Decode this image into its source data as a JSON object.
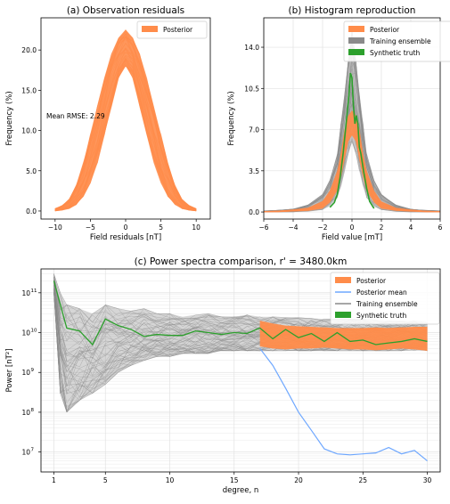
{
  "colors": {
    "posterior": "#ff8c4a",
    "training": "#8a8a8a",
    "synthetic": "#2ca02c",
    "posterior_mean": "#6fa8ff",
    "grid": "#e2e2e2"
  },
  "chart_data": [
    {
      "type": "area",
      "title": "(a) Observation residuals",
      "xlabel": "Field residuals [nT]",
      "ylabel": "Frequency (%)",
      "xlim": [
        -12,
        12
      ],
      "ylim": [
        -1,
        24
      ],
      "xticks": [
        -10,
        -5,
        0,
        5,
        10
      ],
      "xtick_labels": [
        "−10",
        "−5",
        "0",
        "5",
        "10"
      ],
      "yticks": [
        0,
        5,
        10,
        15,
        20
      ],
      "ytick_labels": [
        "0.0",
        "5.0",
        "10.0",
        "15.0",
        "20.0"
      ],
      "grid": false,
      "legend": "top-right",
      "annotation": "Mean RMSE: 2.29",
      "series": [
        {
          "name": "Posterior",
          "x": [
            -10,
            -9,
            -8,
            -7,
            -6,
            -5,
            -4,
            -3,
            -2,
            -1,
            0,
            1,
            2,
            3,
            4,
            5,
            6,
            7,
            8,
            9,
            10
          ],
          "upper": [
            0.3,
            0.7,
            1.5,
            3.2,
            6.0,
            9.5,
            13.0,
            16.5,
            19.5,
            21.5,
            22.5,
            21.5,
            19.5,
            16.5,
            13.0,
            9.5,
            6.0,
            3.2,
            1.5,
            0.7,
            0.3
          ],
          "lower": [
            0.0,
            0.1,
            0.3,
            0.8,
            1.8,
            3.5,
            6.0,
            9.5,
            13.0,
            16.5,
            18.0,
            16.5,
            13.0,
            9.5,
            6.0,
            3.5,
            1.8,
            0.8,
            0.3,
            0.1,
            0.0
          ]
        }
      ]
    },
    {
      "type": "area",
      "title": "(b) Histogram reproduction",
      "xlabel": "Field value [mT]",
      "ylabel": "Frequency (%)",
      "xlim": [
        -6,
        6
      ],
      "ylim": [
        -0.6,
        16.5
      ],
      "xticks": [
        -6,
        -4,
        -2,
        0,
        2,
        4,
        6
      ],
      "xtick_labels": [
        "−6",
        "−4",
        "−2",
        "0",
        "2",
        "4",
        "6"
      ],
      "yticks": [
        0,
        3.5,
        7,
        10.5,
        14
      ],
      "ytick_labels": [
        "0.0",
        "3.5",
        "7.0",
        "10.5",
        "14.0"
      ],
      "grid": true,
      "legend": "top-right",
      "series": [
        {
          "name": "Posterior",
          "x": [
            -6,
            -5,
            -4,
            -3,
            -2,
            -1.5,
            -1,
            -0.75,
            -0.5,
            -0.25,
            0,
            0.25,
            0.5,
            0.75,
            1,
            1.5,
            2,
            3,
            4,
            5,
            6
          ],
          "upper": [
            0.05,
            0.1,
            0.2,
            0.35,
            0.9,
            1.8,
            3.5,
            5.0,
            7.0,
            8.2,
            8.6,
            8.2,
            7.0,
            5.0,
            3.5,
            1.8,
            0.9,
            0.35,
            0.2,
            0.1,
            0.05
          ],
          "lower": [
            0.0,
            0.0,
            0.05,
            0.1,
            0.3,
            0.8,
            1.8,
            3.0,
            4.5,
            6.0,
            6.5,
            6.0,
            4.5,
            3.0,
            1.8,
            0.8,
            0.3,
            0.1,
            0.05,
            0.0,
            0.0
          ]
        },
        {
          "name": "Training ensemble",
          "x": [
            -6,
            -5,
            -4,
            -3,
            -2,
            -1.5,
            -1,
            -0.75,
            -0.5,
            -0.25,
            0,
            0.25,
            0.5,
            0.75,
            1,
            1.5,
            2,
            3,
            4,
            5,
            6
          ],
          "upper": [
            0.1,
            0.15,
            0.25,
            0.6,
            1.5,
            2.7,
            5.0,
            7.5,
            10.0,
            13.0,
            15.6,
            13.0,
            10.0,
            7.5,
            5.0,
            2.7,
            1.5,
            0.6,
            0.25,
            0.15,
            0.1
          ],
          "lower": [
            0.0,
            0.0,
            0.0,
            0.05,
            0.2,
            0.5,
            1.2,
            2.2,
            3.5,
            5.0,
            6.0,
            5.0,
            3.5,
            2.2,
            1.2,
            0.5,
            0.2,
            0.05,
            0.0,
            0.0,
            0.0
          ]
        },
        {
          "name": "Synthetic truth",
          "x": [
            -1.5,
            -1.2,
            -1,
            -0.8,
            -0.6,
            -0.4,
            -0.2,
            -0.1,
            0,
            0.1,
            0.2,
            0.3,
            0.4,
            0.5,
            0.6,
            0.7,
            0.8,
            1.0,
            1.2,
            1.5
          ],
          "y": [
            0.4,
            0.8,
            1.5,
            3.0,
            5.0,
            7.5,
            10.0,
            11.8,
            11.4,
            9.0,
            7.5,
            8.2,
            7.5,
            5.5,
            5.0,
            4.2,
            3.4,
            2.0,
            0.9,
            0.3
          ]
        }
      ]
    },
    {
      "type": "line",
      "title": "(c) Power spectra comparison, r' = 3480.0km",
      "xlabel": "degree, n",
      "ylabel": "Power [nT²]",
      "xlim": [
        0,
        31
      ],
      "ylim": [
        6.5,
        11.6
      ],
      "yscale": "log",
      "xticks": [
        1,
        5,
        10,
        15,
        20,
        25,
        30
      ],
      "ytick_exponents": [
        7,
        8,
        9,
        10,
        11
      ],
      "grid": true,
      "legend": "top-right",
      "series": [
        {
          "name": "Posterior",
          "x": [
            17,
            18,
            19,
            20,
            21,
            22,
            23,
            24,
            25,
            26,
            27,
            28,
            29,
            30
          ],
          "upper": [
            20000000000,
            17000000000,
            15000000000,
            14500000000,
            14000000000,
            13500000000,
            13000000000,
            13000000000,
            13000000000,
            13500000000,
            13000000000,
            13500000000,
            14000000000,
            14000000000
          ],
          "lower": [
            4500000000,
            4000000000,
            3800000000,
            4000000000,
            4000000000,
            4200000000,
            4000000000,
            3800000000,
            3800000000,
            3600000000,
            3800000000,
            4000000000,
            3800000000,
            3500000000
          ]
        },
        {
          "name": "Posterior mean",
          "x": [
            17,
            18,
            19,
            20,
            21,
            22,
            23,
            24,
            25,
            26,
            27,
            28,
            29,
            30
          ],
          "y": [
            4000000000,
            1500000000,
            400000000,
            100000000,
            35000000,
            12000000,
            9000000,
            8500000,
            9000000,
            9500000,
            13000000,
            9000000,
            11000000,
            6000000
          ]
        },
        {
          "name": "Training ensemble",
          "x": [
            1,
            1.5,
            2,
            3,
            4,
            5,
            6,
            7,
            8,
            9,
            10,
            11,
            12,
            13,
            14,
            15,
            16,
            17,
            18,
            19,
            20,
            21,
            22,
            23,
            24,
            25,
            26,
            27,
            28,
            29,
            30
          ],
          "upper": [
            300000000000,
            100000000000,
            50000000000,
            40000000000,
            30000000000,
            50000000000,
            40000000000,
            35000000000,
            40000000000,
            30000000000,
            30000000000,
            25000000000,
            28000000000,
            30000000000,
            25000000000,
            25000000000,
            28000000000,
            25000000000,
            25000000000,
            24000000000,
            24000000000,
            23000000000,
            22000000000,
            22000000000,
            22000000000,
            22000000000,
            21000000000,
            20000000000,
            20000000000,
            20000000000,
            18000000000
          ],
          "lower": [
            100000000000,
            300000000,
            100000000,
            200000000,
            300000000,
            500000000,
            1000000000,
            1500000000,
            2000000000,
            2500000000,
            2500000000,
            3000000000,
            3000000000,
            3000000000,
            3500000000,
            3500000000,
            3500000000,
            3500000000,
            3500000000,
            3500000000,
            3500000000,
            3500000000,
            3500000000,
            3500000000,
            3500000000,
            3500000000,
            3500000000,
            3500000000,
            3500000000,
            3500000000,
            3500000000
          ]
        },
        {
          "name": "Synthetic truth",
          "x": [
            1,
            2,
            3,
            4,
            5,
            6,
            7,
            8,
            9,
            10,
            11,
            12,
            13,
            14,
            15,
            16,
            17,
            18,
            19,
            20,
            21,
            22,
            23,
            24,
            25,
            26,
            27,
            28,
            29,
            30
          ],
          "y": [
            200000000000,
            13000000000,
            11000000000,
            5000000000,
            22000000000,
            15000000000,
            12000000000,
            8000000000,
            9000000000,
            8500000000,
            8500000000,
            11000000000,
            10000000000,
            9000000000,
            10000000000,
            9500000000,
            13000000000,
            7000000000,
            12000000000,
            7500000000,
            9500000000,
            6000000000,
            10000000000,
            6000000000,
            6500000000,
            5000000000,
            5500000000,
            6000000000,
            7000000000,
            6000000000
          ]
        }
      ]
    }
  ]
}
